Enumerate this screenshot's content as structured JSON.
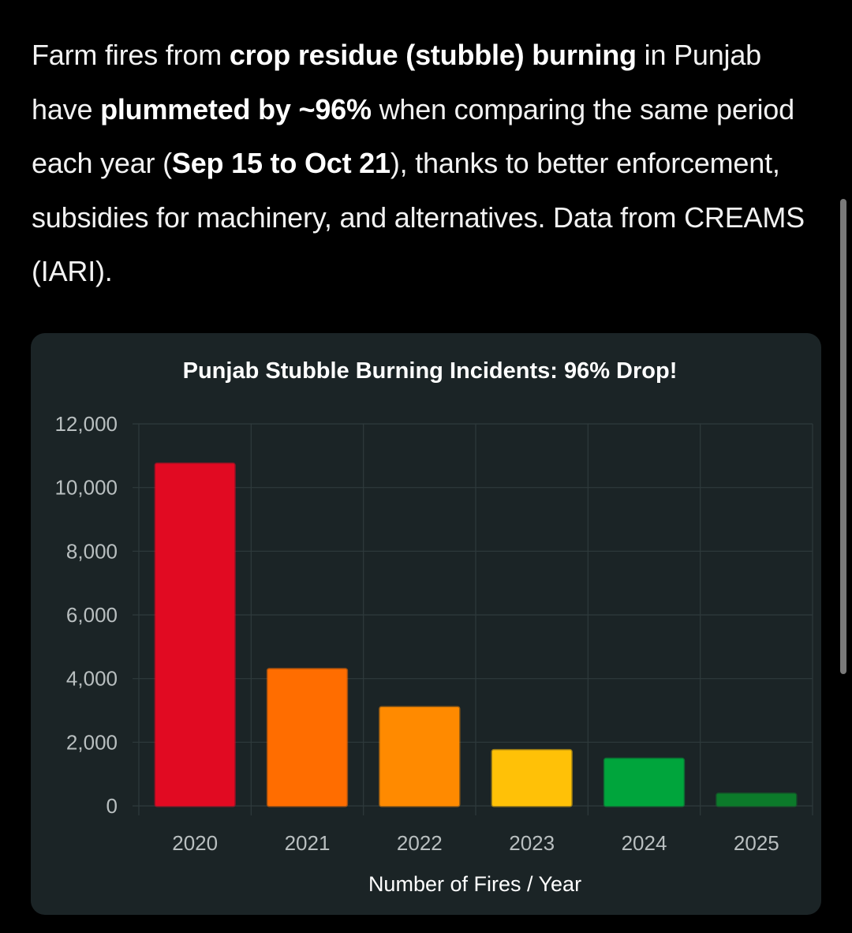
{
  "post": {
    "segments": [
      {
        "text": "Farm fires from ",
        "bold": false
      },
      {
        "text": "crop residue (stubble) burning",
        "bold": true
      },
      {
        "text": " in Punjab have ",
        "bold": false
      },
      {
        "text": "plummeted by ~96%",
        "bold": true
      },
      {
        "text": " when comparing the same period each year (",
        "bold": false
      },
      {
        "text": "Sep 15 to Oct 21",
        "bold": true
      },
      {
        "text": "), thanks to better enforcement, subsidies for machinery, and alternatives. Data from CREAMS (IARI).",
        "bold": false
      }
    ]
  },
  "colors": {
    "page_background": "#000000",
    "card_background": "#1b2426",
    "grid": "#2f3a3c"
  },
  "chart_data": {
    "type": "bar",
    "title": "Punjab Stubble Burning Incidents: 96% Drop!",
    "xlabel": "Number of Fires / Year",
    "ylabel": "",
    "categories": [
      "2020",
      "2021",
      "2022",
      "2023",
      "2024",
      "2025"
    ],
    "values": [
      10750,
      4300,
      3100,
      1750,
      1480,
      380
    ],
    "bar_colors": [
      "#e10a22",
      "#ff6d00",
      "#ff8a00",
      "#ffc107",
      "#00a53c",
      "#0c7a2a"
    ],
    "ylim": [
      0,
      12000
    ],
    "yticks": [
      0,
      2000,
      4000,
      6000,
      8000,
      10000,
      12000
    ],
    "ytick_labels": [
      "0",
      "2,000",
      "4,000",
      "6,000",
      "8,000",
      "10,000",
      "12,000"
    ],
    "grid": true,
    "legend": false
  }
}
